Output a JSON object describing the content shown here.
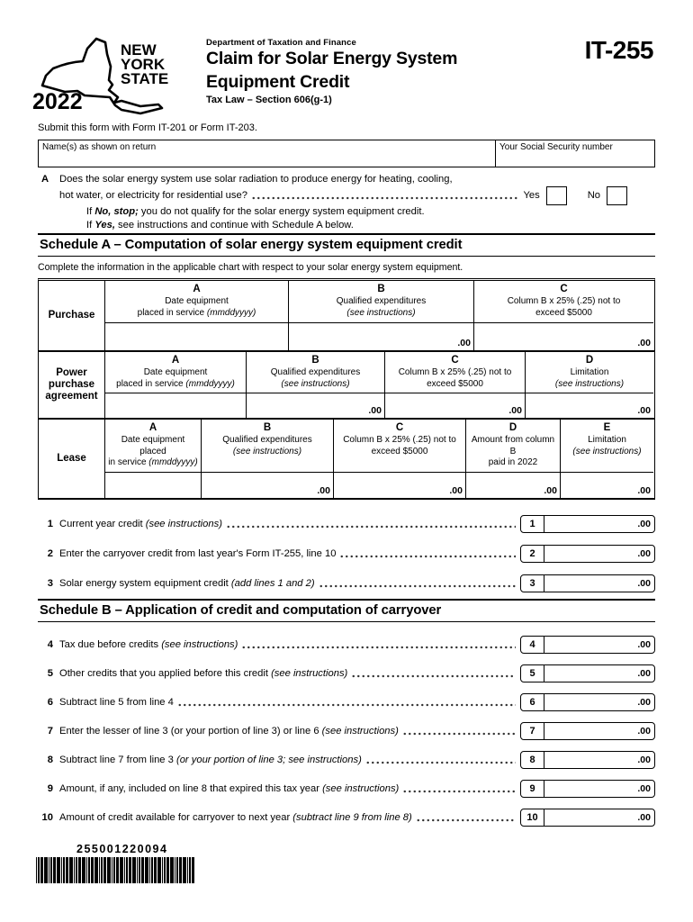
{
  "header": {
    "year": "2022",
    "state_line1": "NEW",
    "state_line2": "YORK",
    "state_line3": "STATE",
    "department": "Department of Taxation and Finance",
    "title_line1": "Claim for Solar Energy System",
    "title_line2": "Equipment Credit",
    "tax_law": "Tax Law – Section 606(g-1)",
    "form_number": "IT-255"
  },
  "submit_instruction": "Submit this form with Form IT-201 or Form IT-203.",
  "identity": {
    "name_label": "Name(s) as shown on return",
    "name_value": "",
    "ssn_label": "Your Social Security number",
    "ssn_value": ""
  },
  "question_a": {
    "marker": "A",
    "line1": "Does the solar energy system use solar radiation to produce energy for heating, cooling,",
    "line2": "hot water, or electricity for residential use?",
    "yes_label": "Yes",
    "no_label": "No",
    "note_no_prefix": "If ",
    "note_no_bold": "No, stop;",
    "note_no_rest": " you do not qualify for the solar energy system equipment credit.",
    "note_yes_prefix": "If ",
    "note_yes_bold": "Yes,",
    "note_yes_rest": " see instructions and continue with Schedule A below."
  },
  "schedule_a": {
    "title": "Schedule A – Computation of solar energy system equipment credit",
    "intro": "Complete the information in the applicable chart with respect to your solar energy system equipment.",
    "tables": [
      {
        "row_label": "Purchase",
        "columns": [
          {
            "letter": "A",
            "d1": "Date equipment",
            "d2": "placed in service ",
            "it": "(mmddyyyy)",
            "value": ""
          },
          {
            "letter": "B",
            "d1": "Qualified expenditures",
            "d2": "",
            "it": "(see instructions)",
            "value": ".00"
          },
          {
            "letter": "C",
            "d1": "Column B x 25% (.25) not to",
            "d2": "exceed $5000",
            "it": "",
            "value": ".00"
          }
        ]
      },
      {
        "row_label": "Power purchase agreement",
        "columns": [
          {
            "letter": "A",
            "d1": "Date equipment",
            "d2": "placed in service ",
            "it": "(mmddyyyy)",
            "value": ""
          },
          {
            "letter": "B",
            "d1": "Qualified expenditures",
            "d2": "",
            "it": "(see instructions)",
            "value": ".00"
          },
          {
            "letter": "C",
            "d1": "Column B x 25% (.25) not to",
            "d2": "exceed $5000",
            "it": "",
            "value": ".00"
          },
          {
            "letter": "D",
            "d1": "Limitation",
            "d2": "",
            "it": "(see instructions)",
            "value": ".00"
          }
        ]
      },
      {
        "row_label": "Lease",
        "columns": [
          {
            "letter": "A",
            "d1": "Date equipment placed",
            "d2": "in service ",
            "it": "(mmddyyyy)",
            "value": ""
          },
          {
            "letter": "B",
            "d1": "Qualified expenditures",
            "d2": "",
            "it": "(see instructions)",
            "value": ".00"
          },
          {
            "letter": "C",
            "d1": "Column B x 25% (.25) not to",
            "d2": "exceed $5000",
            "it": "",
            "value": ".00"
          },
          {
            "letter": "D",
            "d1": "Amount from column B",
            "d2": "paid in 2022",
            "it": "",
            "value": ".00"
          },
          {
            "letter": "E",
            "d1": "Limitation",
            "d2": "",
            "it": "(see instructions)",
            "value": ".00"
          }
        ]
      }
    ]
  },
  "schedule_a_lines": [
    {
      "num": "1",
      "text": "Current year credit ",
      "italic": "(see instructions)",
      "value": ".00"
    },
    {
      "num": "2",
      "text": "Enter the carryover credit from last year's Form IT-255, line 10",
      "italic": "",
      "value": ".00"
    },
    {
      "num": "3",
      "text": "Solar energy system equipment credit ",
      "italic": "(add lines 1 and 2)",
      "value": ".00"
    }
  ],
  "schedule_b": {
    "title": "Schedule B – Application of credit and computation of carryover"
  },
  "schedule_b_lines": [
    {
      "num": "4",
      "text": "Tax due before credits ",
      "italic": "(see instructions)",
      "value": ".00"
    },
    {
      "num": "5",
      "text": "Other credits that you applied before this credit ",
      "italic": "(see instructions)",
      "value": ".00"
    },
    {
      "num": "6",
      "text": "Subtract line 5 from line 4",
      "italic": "",
      "value": ".00"
    },
    {
      "num": "7",
      "text": "Enter the lesser of line 3 (or your portion of line 3) or line 6 ",
      "italic": "(see instructions)",
      "value": ".00"
    },
    {
      "num": "8",
      "text": "Subtract line 7 from line 3 ",
      "italic": "(or your portion of line 3; see instructions)",
      "value": ".00"
    },
    {
      "num": "9",
      "text": "Amount, if any, included on line 8 that expired this tax year ",
      "italic": "(see instructions)",
      "value": ".00"
    },
    {
      "num": "10",
      "text": "Amount of credit available for carryover to next year ",
      "italic": "(subtract line 9 from line 8)",
      "value": ".00"
    }
  ],
  "footer": {
    "barcode_number": "255001220094"
  }
}
